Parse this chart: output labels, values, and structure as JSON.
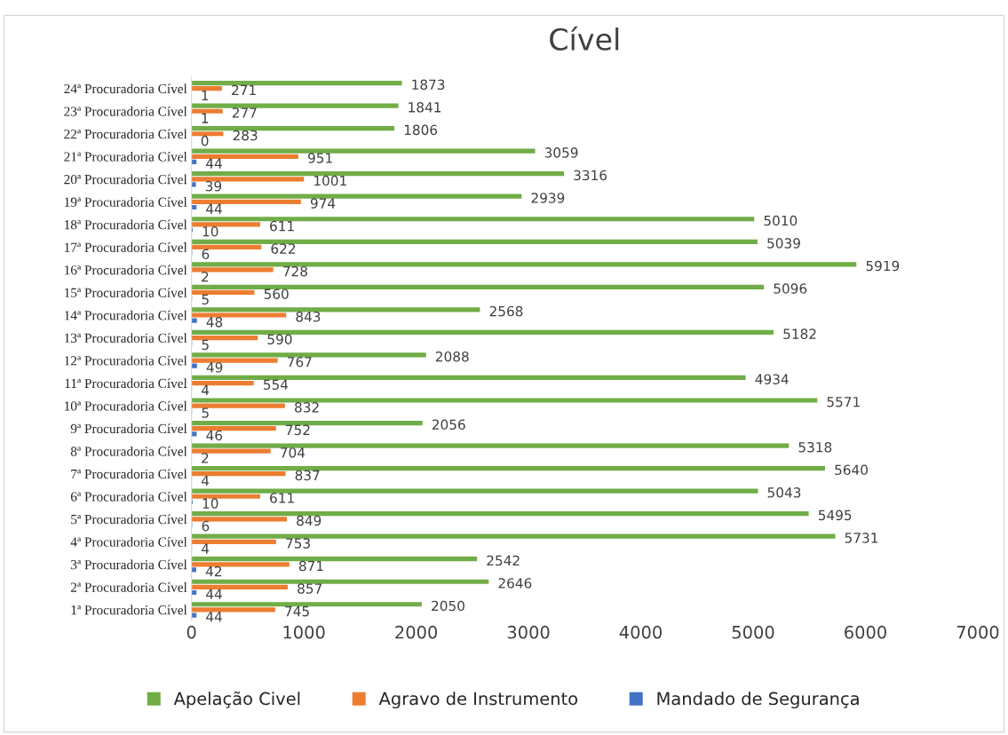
{
  "chart_data": {
    "type": "bar",
    "orientation": "horizontal",
    "title": "Cível",
    "categories": [
      "24ª Procuradoria Cível",
      "23ª Procuradoria Cível",
      "22ª Procuradoria Cível",
      "21ª Procuradoria Cível",
      "20ª Procuradoria Cível",
      "19ª Procuradoria Cível",
      "18ª Procuradoria Cível",
      "17ª Procuradoria Cível",
      "16ª Procuradoria Cível",
      "15ª Procuradoria Cível",
      "14ª Procuradoria Cível",
      "13ª Procuradoria Cível",
      "12ª Procuradoria Cível",
      "11ª Procuradoria Cível",
      "10ª Procuradoria Cível",
      "9ª Procuradoria Cível",
      "8ª Procuradoria Cível",
      "7ª Procuradoria Cível",
      "6ª Procuradoria Cível",
      "5ª Procuradoria Cível",
      "4ª Procuradoria Cível",
      "3ª Procuradoria Cível",
      "2ª Procuradoria Cível",
      "1ª Procuradoria Cível"
    ],
    "series": [
      {
        "name": "Apelação Civel",
        "color": "#70ad47",
        "values": [
          1873,
          1841,
          1806,
          3059,
          3316,
          2939,
          5010,
          5039,
          5919,
          5096,
          2568,
          5182,
          2088,
          4934,
          5571,
          2056,
          5318,
          5640,
          5043,
          5495,
          5731,
          2542,
          2646,
          2050
        ]
      },
      {
        "name": "Agravo de Instrumento",
        "color": "#ed7d31",
        "values": [
          271,
          277,
          283,
          951,
          1001,
          974,
          611,
          622,
          728,
          560,
          843,
          590,
          767,
          554,
          832,
          752,
          704,
          837,
          611,
          849,
          753,
          871,
          857,
          745
        ]
      },
      {
        "name": "Mandado de Segurança",
        "color": "#4472c4",
        "values": [
          1,
          1,
          0,
          44,
          39,
          44,
          10,
          6,
          2,
          5,
          48,
          5,
          49,
          4,
          5,
          46,
          2,
          4,
          10,
          6,
          4,
          42,
          44,
          44
        ]
      }
    ],
    "xlim": [
      0,
      7000
    ],
    "xticks": [
      0,
      1000,
      2000,
      3000,
      4000,
      5000,
      6000,
      7000
    ],
    "data_labels": true,
    "grid": false,
    "legend": "bottom"
  }
}
